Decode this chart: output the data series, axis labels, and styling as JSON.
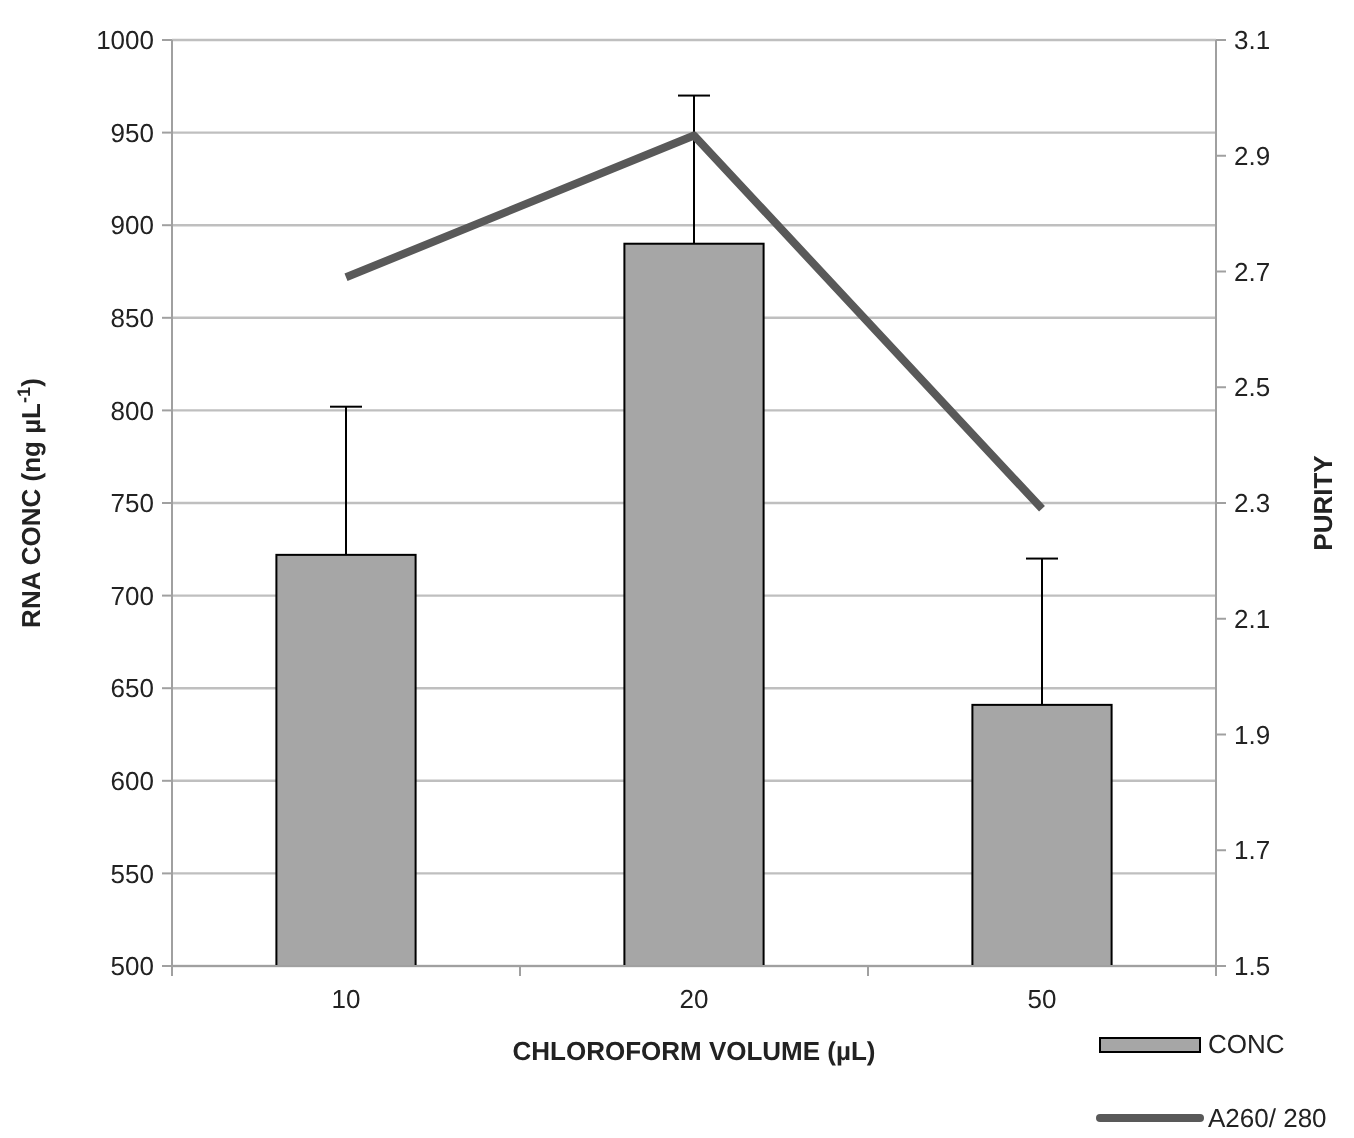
{
  "chart_data": {
    "type": "bar",
    "xlabel": "CHLOROFORM VOLUME (µL)",
    "ylabel": "RNA CONC (ng µL$^{-1}$)",
    "y2label": "PURITY",
    "categories": [
      "10",
      "20",
      "50"
    ],
    "series": [
      {
        "name": "CONC",
        "color": "#a6a6a6",
        "values": [
          722,
          890,
          641
        ],
        "errors": [
          80,
          80,
          79
        ]
      },
      {
        "name": "A260/ 280",
        "type": "line",
        "axis": "y2",
        "color": "#595959",
        "values": [
          2.69,
          2.935,
          2.29
        ]
      }
    ],
    "ylim": [
      500,
      1000
    ],
    "yticks": [
      500,
      550,
      600,
      650,
      700,
      750,
      800,
      850,
      900,
      950,
      1000
    ],
    "y2lim": [
      1.5,
      3.1
    ],
    "y2ticks": [
      1.5,
      1.7,
      1.9,
      2.1,
      2.3,
      2.5,
      2.7,
      2.9,
      3.1
    ],
    "grid": "y",
    "legend": "bottom right",
    "marker": "none",
    "line_style": "solid"
  }
}
